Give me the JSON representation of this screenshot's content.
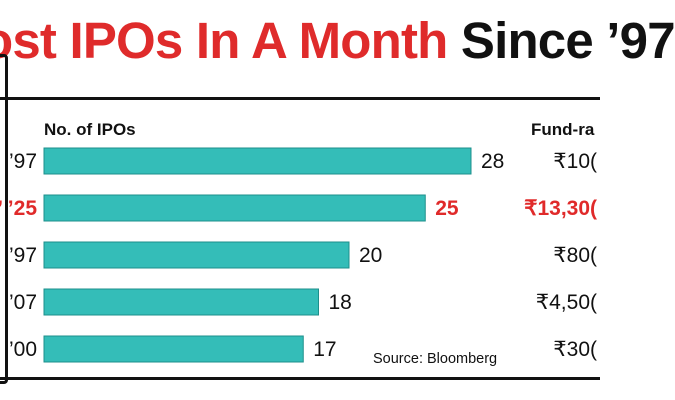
{
  "title": {
    "part_red": "ost IPOs In A Month",
    "part_black": " Since ’97"
  },
  "colors": {
    "bar": "#34bdb8",
    "bar_stroke": "#1d8f8b",
    "highlight": "#e02a2a",
    "title_red": "#df2b2b",
    "text": "#111111"
  },
  "chart_data": {
    "type": "bar",
    "orientation": "horizontal",
    "title": "ost IPOs In A Month Since ’97",
    "xlabel": "No. of IPOs",
    "fund_header": "Fund-ra",
    "xlim": [
      0,
      28
    ],
    "categories": [
      "’97",
      "’ ’25",
      "’97",
      "’07",
      "’00"
    ],
    "values": [
      28,
      25,
      20,
      18,
      17
    ],
    "value_labels": [
      "28",
      "25",
      "20",
      "18",
      "17"
    ],
    "funds": [
      "₹10(",
      "₹13,30(",
      "₹80(",
      "₹4,50(",
      "₹30("
    ],
    "highlight_index": 1,
    "source": "Source: Bloomberg"
  }
}
